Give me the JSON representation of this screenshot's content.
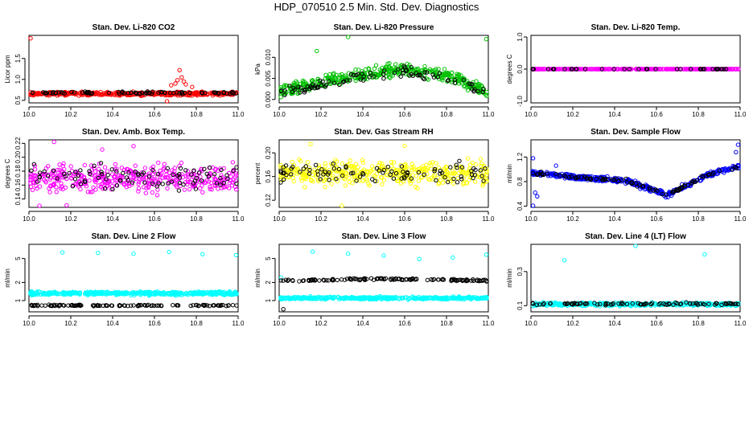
{
  "page": {
    "title": "HDP_070510  2.5 Min. Std. Dev. Diagnostics"
  },
  "chart_data": [
    {
      "type": "scatter",
      "title": "Stan. Dev. Li-820 CO2",
      "ylabel": "Licor ppm",
      "xlim": [
        10.0,
        11.0
      ],
      "ylim": [
        0.44,
        2.05
      ],
      "xticks": [
        "10.0",
        "10.2",
        "10.4",
        "10.6",
        "10.8",
        "11.0"
      ],
      "yticks": [
        {
          "v": 0.5,
          "label": "0.5"
        },
        {
          "v": 1.0,
          "label": "1.0"
        },
        {
          "v": 1.5,
          "label": "1.5"
        }
      ],
      "series": [
        {
          "color": "#ff0000",
          "kind": "cloud",
          "n": 420,
          "base": [
            [
              10.0,
              0.66
            ],
            [
              11.0,
              0.66
            ]
          ],
          "spread": 0.06,
          "points": [
            [
              10.005,
              1.98
            ],
            [
              10.72,
              1.22
            ],
            [
              10.73,
              1.05
            ],
            [
              10.74,
              0.95
            ],
            [
              10.71,
              0.98
            ],
            [
              10.75,
              0.88
            ],
            [
              10.66,
              0.46
            ],
            [
              10.68,
              0.86
            ],
            [
              10.78,
              0.82
            ],
            [
              10.7,
              0.9
            ]
          ]
        },
        {
          "color": "#000000",
          "kind": "cloud",
          "n": 80,
          "base": [
            [
              10.0,
              0.68
            ],
            [
              11.0,
              0.68
            ]
          ],
          "spread": 0.04
        }
      ]
    },
    {
      "type": "scatter",
      "title": "Stan. Dev. Li-820 Pressure",
      "ylabel": "kPa",
      "xlim": [
        10.0,
        11.0
      ],
      "ylim": [
        -0.0008,
        0.0152
      ],
      "xticks": [
        "10.0",
        "10.2",
        "10.4",
        "10.6",
        "10.8",
        "11.0"
      ],
      "yticks": [
        {
          "v": 0.0,
          "label": "0.000"
        },
        {
          "v": 0.005,
          "label": "0.005"
        },
        {
          "v": 0.01,
          "label": "0.010"
        }
      ],
      "series": [
        {
          "color": "#00c000",
          "kind": "cloud",
          "n": 420,
          "base": [
            [
              10.0,
              0.0018
            ],
            [
              10.3,
              0.005
            ],
            [
              10.6,
              0.0072
            ],
            [
              10.85,
              0.005
            ],
            [
              11.0,
              0.0015
            ]
          ],
          "spread": 0.0022,
          "points": [
            [
              10.33,
              0.0148
            ],
            [
              10.99,
              0.0143
            ],
            [
              10.18,
              0.0115
            ]
          ]
        },
        {
          "color": "#000000",
          "kind": "cloud",
          "n": 90,
          "base": [
            [
              10.0,
              0.002
            ],
            [
              10.3,
              0.0045
            ],
            [
              10.6,
              0.0066
            ],
            [
              10.85,
              0.0045
            ],
            [
              11.0,
              0.0015
            ]
          ],
          "spread": 0.0018
        }
      ]
    },
    {
      "type": "scatter",
      "title": "Stan. Dev. Li-820 Temp.",
      "ylabel": "degrees C",
      "xlim": [
        10.0,
        11.0
      ],
      "ylim": [
        -1.05,
        1.05
      ],
      "xticks": [
        "10.0",
        "10.2",
        "10.4",
        "10.6",
        "10.8",
        "11.0"
      ],
      "yticks": [
        {
          "v": -1.0,
          "label": "-1.0"
        },
        {
          "v": 0.0,
          "label": "0.0"
        },
        {
          "v": 1.0,
          "label": "1.0"
        }
      ],
      "series": [
        {
          "color": "#ff00ff",
          "kind": "cloud",
          "n": 400,
          "base": [
            [
              10.0,
              0.0
            ],
            [
              11.0,
              0.0
            ]
          ],
          "spread": 0.0
        },
        {
          "color": "#000000",
          "kind": "cloud",
          "n": 40,
          "base": [
            [
              10.0,
              0.0
            ],
            [
              11.0,
              0.0
            ]
          ],
          "spread": 0.0
        }
      ]
    },
    {
      "type": "scatter",
      "title": "Stan. Dev. Amb. Box Temp.",
      "ylabel": "degrees C",
      "xlim": [
        10.0,
        11.0
      ],
      "ylim": [
        0.128,
        0.225
      ],
      "xticks": [
        "10.0",
        "10.2",
        "10.4",
        "10.6",
        "10.8",
        "11.0"
      ],
      "yticks": [
        {
          "v": 0.14,
          "label": "0.14"
        },
        {
          "v": 0.16,
          "label": "0.16"
        },
        {
          "v": 0.18,
          "label": "0.18"
        },
        {
          "v": 0.2,
          "label": "0.20"
        },
        {
          "v": 0.22,
          "label": "0.22"
        }
      ],
      "series": [
        {
          "color": "#ff00ff",
          "kind": "cloud",
          "n": 400,
          "base": [
            [
              10.0,
              0.17
            ],
            [
              11.0,
              0.17
            ]
          ],
          "spread": 0.028,
          "points": [
            [
              10.12,
              0.222
            ],
            [
              10.18,
              0.131
            ],
            [
              10.35,
              0.211
            ],
            [
              10.5,
              0.216
            ],
            [
              10.05,
              0.128
            ]
          ]
        },
        {
          "color": "#000000",
          "kind": "cloud",
          "n": 90,
          "base": [
            [
              10.0,
              0.17
            ],
            [
              11.0,
              0.17
            ]
          ],
          "spread": 0.025
        }
      ]
    },
    {
      "type": "scatter",
      "title": "Stan. Dev. Gas Stream RH",
      "ylabel": "percent",
      "xlim": [
        10.0,
        11.0
      ],
      "ylim": [
        0.108,
        0.222
      ],
      "xticks": [
        "10.0",
        "10.2",
        "10.4",
        "10.6",
        "10.8",
        "11.0"
      ],
      "yticks": [
        {
          "v": 0.12,
          "label": "0.12"
        },
        {
          "v": 0.16,
          "label": "0.16"
        },
        {
          "v": 0.2,
          "label": "0.20"
        }
      ],
      "series": [
        {
          "color": "#ffff00",
          "kind": "cloud",
          "n": 400,
          "base": [
            [
              10.0,
              0.166
            ],
            [
              11.0,
              0.166
            ]
          ],
          "spread": 0.03,
          "points": [
            [
              10.3,
              0.108
            ],
            [
              10.15,
              0.215
            ],
            [
              10.6,
              0.212
            ]
          ]
        },
        {
          "color": "#000000",
          "kind": "cloud",
          "n": 90,
          "base": [
            [
              10.0,
              0.166
            ],
            [
              11.0,
              0.166
            ]
          ],
          "spread": 0.025
        }
      ]
    },
    {
      "type": "scatter",
      "title": "Stan. Dev. Sample Flow",
      "ylabel": "ml/min",
      "xlim": [
        10.0,
        11.0
      ],
      "ylim": [
        0.38,
        1.48
      ],
      "xticks": [
        "10.0",
        "10.2",
        "10.4",
        "10.6",
        "10.8",
        "11.0"
      ],
      "yticks": [
        {
          "v": 0.4,
          "label": "0.4"
        },
        {
          "v": 0.8,
          "label": "0.8"
        },
        {
          "v": 1.2,
          "label": "1.2"
        }
      ],
      "series": [
        {
          "color": "#0000ff",
          "kind": "cloud",
          "n": 420,
          "base": [
            [
              10.0,
              0.94
            ],
            [
              10.25,
              0.86
            ],
            [
              10.45,
              0.82
            ],
            [
              10.55,
              0.7
            ],
            [
              10.65,
              0.58
            ],
            [
              10.72,
              0.7
            ],
            [
              10.85,
              0.92
            ],
            [
              11.0,
              1.05
            ]
          ],
          "spread": 0.06,
          "points": [
            [
              10.01,
              0.4
            ],
            [
              10.02,
              0.62
            ],
            [
              10.03,
              0.56
            ],
            [
              10.01,
              1.18
            ],
            [
              10.12,
              1.06
            ],
            [
              10.99,
              1.4
            ],
            [
              10.98,
              1.28
            ]
          ]
        },
        {
          "color": "#000000",
          "kind": "cloud",
          "n": 90,
          "base": [
            [
              10.0,
              0.94
            ],
            [
              10.25,
              0.86
            ],
            [
              10.45,
              0.82
            ],
            [
              10.55,
              0.7
            ],
            [
              10.65,
              0.58
            ],
            [
              10.72,
              0.7
            ],
            [
              10.85,
              0.92
            ],
            [
              11.0,
              1.05
            ]
          ],
          "spread": 0.04
        }
      ]
    },
    {
      "type": "scatter",
      "title": "Stan. Dev. Line 2 Flow",
      "ylabel": "ml/min",
      "yscale": "log",
      "xlim": [
        10.0,
        11.0
      ],
      "ylim": [
        0.65,
        8.6
      ],
      "xticks": [
        "10.0",
        "10.2",
        "10.4",
        "10.6",
        "10.8",
        "11.0"
      ],
      "yticks": [
        {
          "v": 1,
          "label": "1"
        },
        {
          "v": 2,
          "label": "2"
        },
        {
          "v": 5,
          "label": "5"
        }
      ],
      "series": [
        {
          "color": "#00ffff",
          "kind": "cloud",
          "n": 420,
          "base": [
            [
              10.0,
              1.32
            ],
            [
              11.0,
              1.32
            ]
          ],
          "spread": 0.12,
          "points": [
            [
              10.16,
              6.3
            ],
            [
              10.33,
              6.2
            ],
            [
              10.5,
              6.0
            ],
            [
              10.67,
              6.4
            ],
            [
              10.83,
              5.9
            ],
            [
              10.99,
              5.7
            ]
          ]
        },
        {
          "color": "#000000",
          "kind": "cloud",
          "n": 110,
          "base": [
            [
              10.0,
              0.83
            ],
            [
              11.0,
              0.83
            ]
          ],
          "spread": 0.03
        }
      ]
    },
    {
      "type": "scatter",
      "title": "Stan. Dev. Line 3 Flow",
      "ylabel": "ml/min",
      "yscale": "log",
      "xlim": [
        10.0,
        11.0
      ],
      "ylim": [
        0.65,
        8.6
      ],
      "xticks": [
        "10.0",
        "10.2",
        "10.4",
        "10.6",
        "10.8",
        "11.0"
      ],
      "yticks": [
        {
          "v": 1,
          "label": "1"
        },
        {
          "v": 2,
          "label": "2"
        },
        {
          "v": 5,
          "label": "5"
        }
      ],
      "series": [
        {
          "color": "#00ffff",
          "kind": "cloud",
          "n": 400,
          "base": [
            [
              10.0,
              1.1
            ],
            [
              11.0,
              1.1
            ]
          ],
          "spread": 0.08,
          "points": [
            [
              10.16,
              6.5
            ],
            [
              10.33,
              6.0
            ],
            [
              10.5,
              5.6
            ],
            [
              10.67,
              4.9
            ],
            [
              10.83,
              5.2
            ],
            [
              10.99,
              5.8
            ],
            [
              10.01,
              2.4
            ]
          ]
        },
        {
          "color": "#000000",
          "kind": "cloud",
          "n": 130,
          "base": [
            [
              10.0,
              2.15
            ],
            [
              10.5,
              2.3
            ],
            [
              11.0,
              2.15
            ]
          ],
          "spread": 0.12,
          "points": [
            [
              10.02,
              0.72
            ]
          ]
        }
      ]
    },
    {
      "type": "scatter",
      "title": "Stan. Dev. Line 4 (LT) Flow",
      "ylabel": "ml/min",
      "yscale": "log",
      "xlim": [
        10.0,
        11.0
      ],
      "ylim": [
        0.082,
        0.72
      ],
      "xticks": [
        "10.0",
        "10.2",
        "10.4",
        "10.6",
        "10.8",
        "11.0"
      ],
      "yticks": [
        {
          "v": 0.1,
          "label": "0.1"
        },
        {
          "v": 0.3,
          "label": "0.3"
        }
      ],
      "series": [
        {
          "color": "#00ffff",
          "kind": "cloud",
          "n": 400,
          "base": [
            [
              10.0,
              0.105
            ],
            [
              11.0,
              0.105
            ]
          ],
          "spread": 0.008,
          "points": [
            [
              10.16,
              0.43
            ],
            [
              10.5,
              0.7
            ],
            [
              10.83,
              0.52
            ]
          ]
        },
        {
          "color": "#000000",
          "kind": "cloud",
          "n": 90,
          "base": [
            [
              10.0,
              0.106
            ],
            [
              11.0,
              0.106
            ]
          ],
          "spread": 0.006
        }
      ]
    }
  ]
}
